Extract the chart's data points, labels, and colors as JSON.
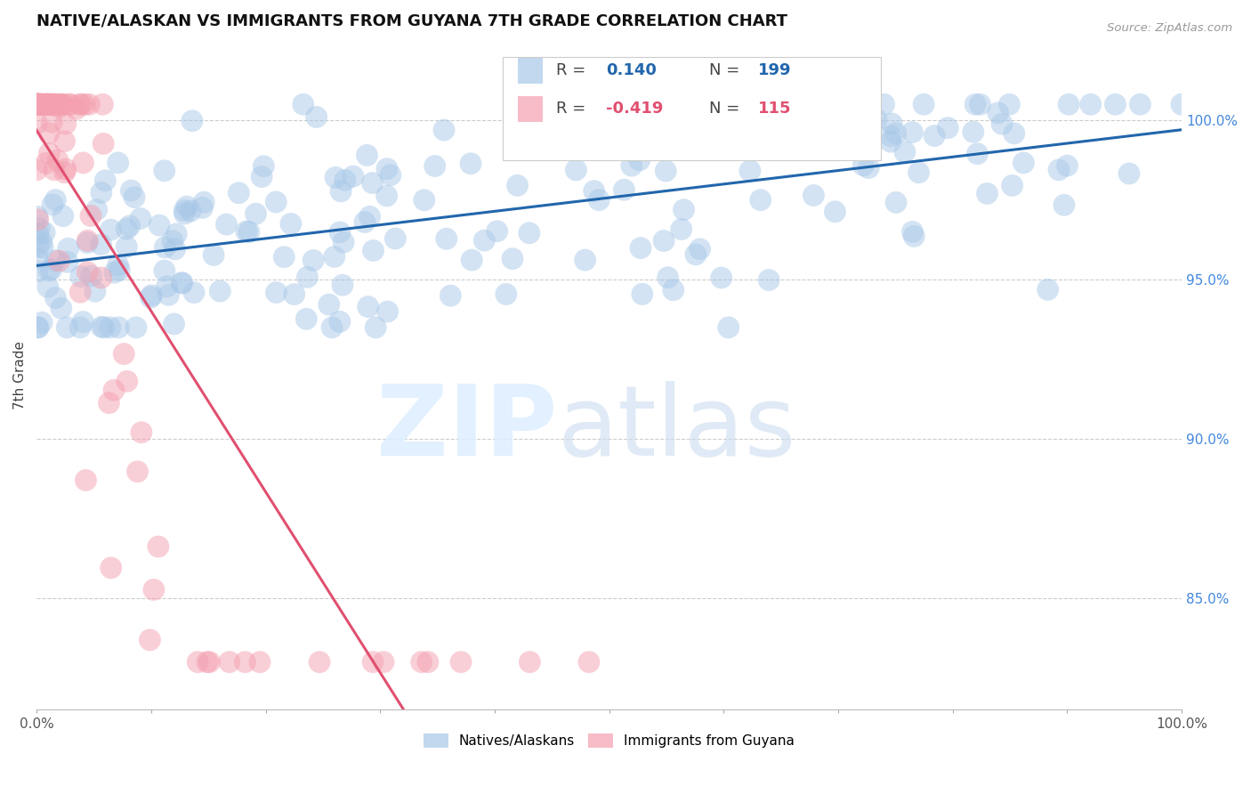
{
  "title": "NATIVE/ALASKAN VS IMMIGRANTS FROM GUYANA 7TH GRADE CORRELATION CHART",
  "source": "Source: ZipAtlas.com",
  "ylabel": "7th Grade",
  "legend_entries": [
    "Natives/Alaskans",
    "Immigrants from Guyana"
  ],
  "blue_R": 0.14,
  "blue_N": 199,
  "pink_R": -0.419,
  "pink_N": 115,
  "blue_color": "#a8c8e8",
  "pink_color": "#f4a0b0",
  "blue_trend_color": "#2166ac",
  "pink_trend_color": "#e05070",
  "right_yticks": [
    "85.0%",
    "90.0%",
    "95.0%",
    "100.0%"
  ],
  "right_ytick_values": [
    0.85,
    0.9,
    0.95,
    1.0
  ],
  "xlim": [
    0.0,
    1.0
  ],
  "ylim": [
    0.815,
    1.025
  ],
  "seed": 42
}
